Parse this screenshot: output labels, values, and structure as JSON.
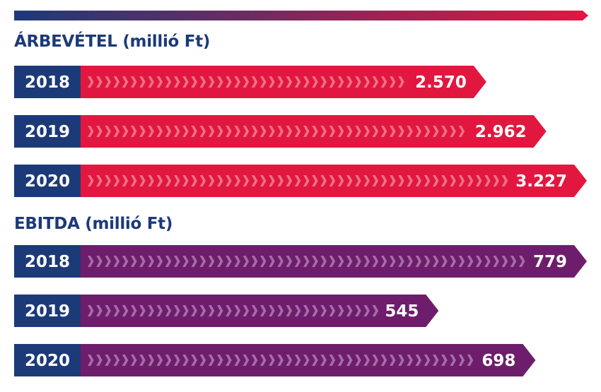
{
  "colors": {
    "year_box": "#1c3a78",
    "title": "#1c3a78",
    "revenue_bar": "#e2173f",
    "revenue_chevron": "#ef7285",
    "ebitda_bar": "#6e1d6c",
    "ebitda_chevron": "#a76ea6",
    "gradient_start": "#1c3a78",
    "gradient_end": "#e2173f",
    "label_text": "#ffffff"
  },
  "chart_data": [
    {
      "type": "bar",
      "orientation": "horizontal",
      "title": "ÁRBEVÉTEL (millió Ft)",
      "categories": [
        "2018",
        "2019",
        "2020"
      ],
      "values": [
        2570,
        2962,
        3227
      ],
      "value_labels": [
        "2.570",
        "2.962",
        "3.227"
      ],
      "xlim": [
        0,
        3227
      ]
    },
    {
      "type": "bar",
      "orientation": "horizontal",
      "title": "EBITDA (millió Ft)",
      "categories": [
        "2018",
        "2019",
        "2020"
      ],
      "values": [
        779,
        545,
        698
      ],
      "value_labels": [
        "779",
        "545",
        "698"
      ],
      "xlim": [
        0,
        779
      ]
    }
  ]
}
